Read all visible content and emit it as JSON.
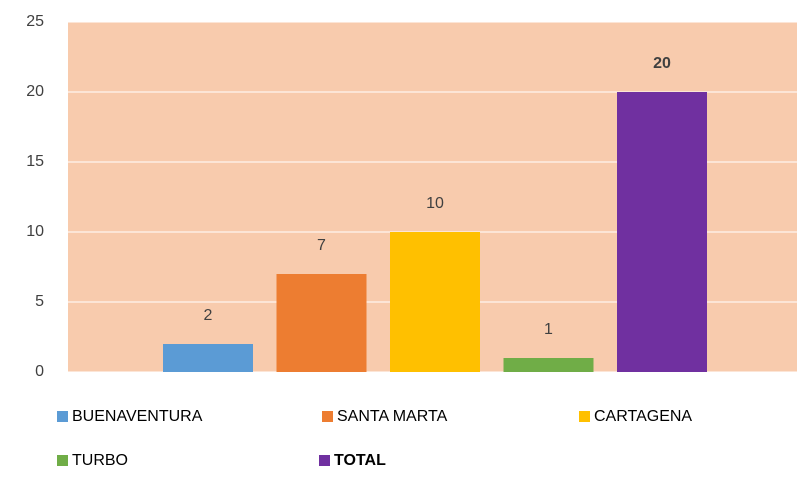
{
  "chart_data": {
    "type": "bar",
    "series": [
      {
        "name": "BUENAVENTURA",
        "color": "#5b9bd5",
        "values": [
          2
        ]
      },
      {
        "name": "SANTA MARTA",
        "color": "#ed7d31",
        "values": [
          7
        ]
      },
      {
        "name": "CARTAGENA",
        "color": "#ffc000",
        "values": [
          10
        ]
      },
      {
        "name": "TURBO",
        "color": "#70ad47",
        "values": [
          1
        ]
      },
      {
        "name": "TOTAL",
        "color": "#7030a0",
        "values": [
          20
        ]
      }
    ],
    "ylim": [
      0,
      25
    ],
    "yticks": [
      0,
      5,
      10,
      15,
      20,
      25
    ],
    "grid": true,
    "plot_background": "#f8cbad",
    "legend": "bottom"
  }
}
